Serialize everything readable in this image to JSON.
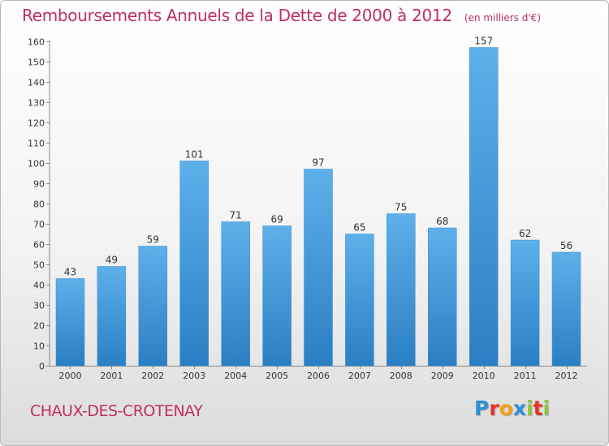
{
  "header": {
    "title": "Remboursements Annuels de la Dette de 2000 à 2012",
    "unit": "(en milliers d'€)"
  },
  "footer": {
    "town": "CHAUX-DES-CROTENAY",
    "logo_text": "Proxiti",
    "logo_colors": [
      "#2e8fd6",
      "#e6332a",
      "#f7a11a",
      "#2e8fd6",
      "#8cc63e",
      "#e6332a",
      "#8cc63e"
    ]
  },
  "chart_data": {
    "type": "bar",
    "title": "Remboursements Annuels de la Dette de 2000 à 2012",
    "subtitle": "(en milliers d'€)",
    "xlabel": "",
    "ylabel": "",
    "categories": [
      "2000",
      "2001",
      "2002",
      "2003",
      "2004",
      "2005",
      "2006",
      "2007",
      "2008",
      "2009",
      "2010",
      "2011",
      "2012"
    ],
    "values": [
      43,
      49,
      59,
      101,
      71,
      69,
      97,
      65,
      75,
      68,
      157,
      62,
      56
    ],
    "ylim": [
      0,
      160
    ],
    "yticks": [
      0,
      10,
      20,
      30,
      40,
      50,
      60,
      70,
      80,
      90,
      100,
      110,
      120,
      130,
      140,
      150,
      160
    ],
    "grid": false,
    "legend": "none",
    "bar_color_top": "#5eb0ea",
    "bar_color_bottom": "#2a7fc4"
  }
}
